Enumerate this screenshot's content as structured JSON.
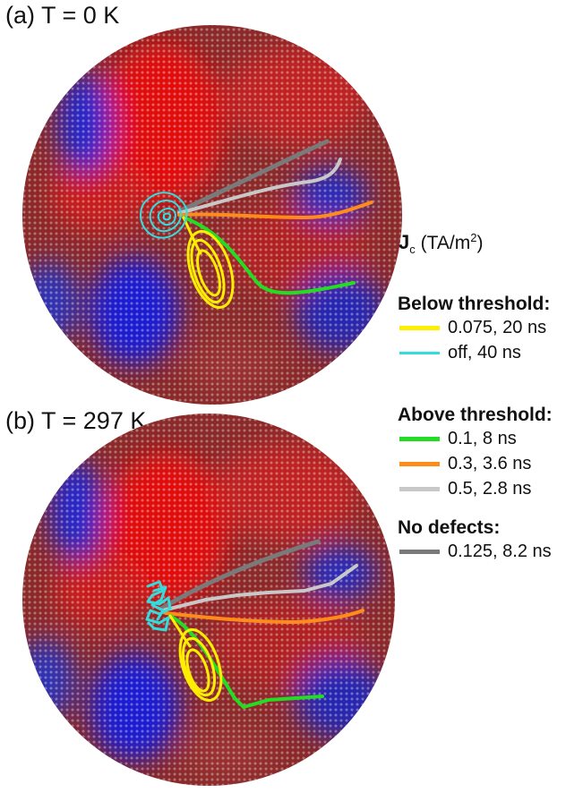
{
  "panels": [
    {
      "label": "(a) T = 0 K"
    },
    {
      "label": "(b) T = 297 K"
    }
  ],
  "colorbar": {
    "symbol": "J",
    "subscript": "c",
    "unit_prefix": "(TA/m",
    "unit_power": "2",
    "unit_suffix": ")"
  },
  "legend": {
    "below": {
      "title": "Below threshold:",
      "items": [
        {
          "label": "0.075, 20 ns",
          "color": "#ffee00"
        },
        {
          "label": "off, 40 ns",
          "color": "#33dddd"
        }
      ]
    },
    "above": {
      "title": "Above threshold:",
      "items": [
        {
          "label": "0.1, 8 ns",
          "color": "#22dd22"
        },
        {
          "label": "0.3, 3.6 ns",
          "color": "#ff8c1a"
        },
        {
          "label": "0.5, 2.8 ns",
          "color": "#c8c8c8"
        }
      ]
    },
    "nodefects": {
      "title": "No defects:",
      "items": [
        {
          "label": "0.125, 8.2 ns",
          "color": "#7a7a7a"
        }
      ]
    }
  },
  "map_colors": {
    "high": "#e01010",
    "low": "#1515c8",
    "zero": "#111111"
  }
}
